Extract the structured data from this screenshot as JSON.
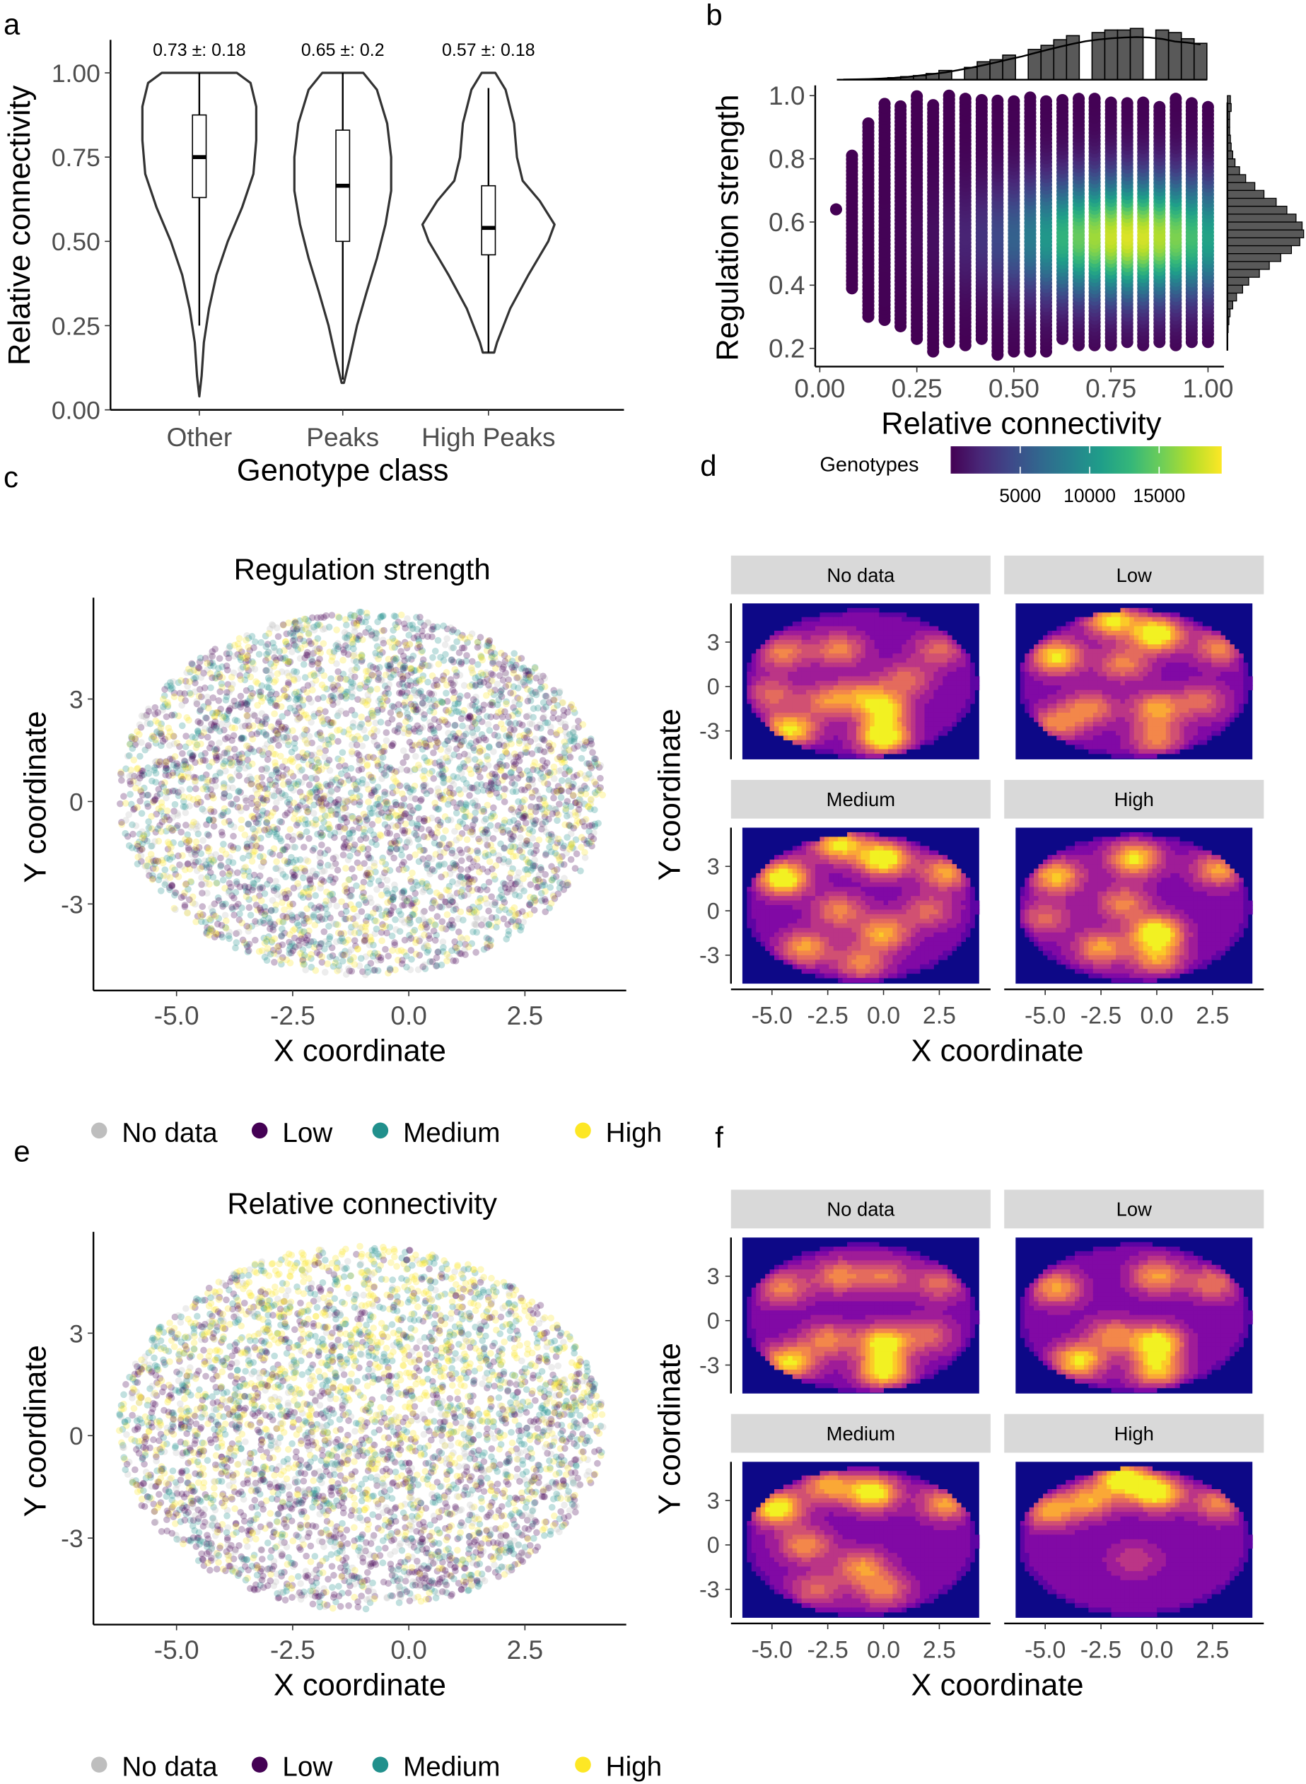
{
  "panel_labels": {
    "a": "a",
    "b": "b",
    "c": "c",
    "d": "d",
    "e": "e",
    "f": "f"
  },
  "chart_data": [
    {
      "panel": "a",
      "type": "violin",
      "xlabel": "Genotype class",
      "ylabel": "Relative connectivity",
      "ylim": [
        0,
        1.1
      ],
      "yticks": [
        "0.00",
        "0.25",
        "0.50",
        "0.75",
        "1.00"
      ],
      "categories": [
        "Other",
        "Peaks",
        "High Peaks"
      ],
      "annotations": [
        "0.73 ±: 0.18",
        "0.65 ±: 0.2",
        "0.57 ±: 0.18"
      ],
      "series": [
        {
          "category": "Other",
          "box": {
            "whisker_low": 0.25,
            "q1": 0.63,
            "median": 0.75,
            "q3": 0.875,
            "whisker_high": 1.0
          },
          "violin_profile": [
            [
              1.0,
              0.66
            ],
            [
              0.97,
              0.9
            ],
            [
              0.9,
              1.0
            ],
            [
              0.8,
              1.0
            ],
            [
              0.7,
              0.95
            ],
            [
              0.6,
              0.75
            ],
            [
              0.5,
              0.5
            ],
            [
              0.4,
              0.3
            ],
            [
              0.3,
              0.17
            ],
            [
              0.2,
              0.08
            ],
            [
              0.1,
              0.04
            ],
            [
              0.04,
              0.0
            ]
          ]
        },
        {
          "category": "Peaks",
          "box": {
            "whisker_low": 0.09,
            "q1": 0.5,
            "median": 0.665,
            "q3": 0.83,
            "whisker_high": 1.0
          },
          "violin_profile": [
            [
              1.0,
              0.36
            ],
            [
              0.95,
              0.6
            ],
            [
              0.85,
              0.78
            ],
            [
              0.75,
              0.85
            ],
            [
              0.65,
              0.85
            ],
            [
              0.55,
              0.75
            ],
            [
              0.45,
              0.6
            ],
            [
              0.35,
              0.42
            ],
            [
              0.25,
              0.25
            ],
            [
              0.15,
              0.12
            ],
            [
              0.08,
              0.02
            ]
          ]
        },
        {
          "category": "High Peaks",
          "box": {
            "whisker_low": 0.17,
            "q1": 0.46,
            "median": 0.54,
            "q3": 0.665,
            "whisker_high": 0.955
          },
          "violin_profile": [
            [
              1.0,
              0.12
            ],
            [
              0.95,
              0.3
            ],
            [
              0.85,
              0.45
            ],
            [
              0.75,
              0.5
            ],
            [
              0.68,
              0.6
            ],
            [
              0.62,
              0.9
            ],
            [
              0.55,
              1.16
            ],
            [
              0.5,
              1.05
            ],
            [
              0.4,
              0.7
            ],
            [
              0.3,
              0.38
            ],
            [
              0.2,
              0.15
            ],
            [
              0.17,
              0.1
            ]
          ]
        }
      ]
    },
    {
      "panel": "b",
      "type": "scatter",
      "xlabel": "Relative connectivity",
      "ylabel": "Regulation strength",
      "xlim": [
        0,
        1
      ],
      "ylim": [
        0.18,
        1.02
      ],
      "xticks": [
        "0.00",
        "0.25",
        "0.50",
        "0.75",
        "1.00"
      ],
      "yticks": [
        "0.2",
        "0.4",
        "0.6",
        "0.8",
        "1.0"
      ],
      "columns": [
        {
          "x": 0.042,
          "ymin": 0.64,
          "ymax": 0.64
        },
        {
          "x": 0.083,
          "ymin": 0.39,
          "ymax": 0.81
        },
        {
          "x": 0.125,
          "ymin": 0.3,
          "ymax": 0.92
        },
        {
          "x": 0.167,
          "ymin": 0.29,
          "ymax": 0.98
        },
        {
          "x": 0.208,
          "ymin": 0.27,
          "ymax": 0.97
        },
        {
          "x": 0.25,
          "ymin": 0.23,
          "ymax": 1.0
        },
        {
          "x": 0.292,
          "ymin": 0.19,
          "ymax": 0.98
        },
        {
          "x": 0.333,
          "ymin": 0.22,
          "ymax": 1.0
        },
        {
          "x": 0.375,
          "ymin": 0.21,
          "ymax": 0.99
        },
        {
          "x": 0.417,
          "ymin": 0.23,
          "ymax": 0.99
        },
        {
          "x": 0.458,
          "ymin": 0.18,
          "ymax": 0.99
        },
        {
          "x": 0.5,
          "ymin": 0.19,
          "ymax": 0.99
        },
        {
          "x": 0.542,
          "ymin": 0.19,
          "ymax": 1.0
        },
        {
          "x": 0.583,
          "ymin": 0.19,
          "ymax": 0.99
        },
        {
          "x": 0.625,
          "ymin": 0.23,
          "ymax": 0.99
        },
        {
          "x": 0.667,
          "ymin": 0.21,
          "ymax": 0.99
        },
        {
          "x": 0.708,
          "ymin": 0.21,
          "ymax": 0.99
        },
        {
          "x": 0.75,
          "ymin": 0.21,
          "ymax": 0.98
        },
        {
          "x": 0.792,
          "ymin": 0.22,
          "ymax": 0.98
        },
        {
          "x": 0.833,
          "ymin": 0.21,
          "ymax": 0.98
        },
        {
          "x": 0.875,
          "ymin": 0.22,
          "ymax": 0.97
        },
        {
          "x": 0.917,
          "ymin": 0.21,
          "ymax": 0.99
        },
        {
          "x": 0.958,
          "ymin": 0.22,
          "ymax": 0.98
        },
        {
          "x": 1.0,
          "ymin": 0.22,
          "ymax": 0.97
        }
      ],
      "density_peak": {
        "x": 0.8,
        "y": 0.56,
        "genotypes": 18500
      },
      "colorbar": {
        "title": "Genotypes",
        "ticks": [
          5000,
          10000,
          15000
        ],
        "tick_labels": [
          "5000",
          "10000",
          "15000"
        ],
        "range": [
          0,
          19500
        ],
        "palette": [
          "#440154",
          "#482878",
          "#3e4989",
          "#31688e",
          "#26828e",
          "#1f9e89",
          "#35b779",
          "#6ece58",
          "#b5de2b",
          "#fde725"
        ]
      },
      "top_histogram_relative": [
        0,
        0,
        0.01,
        0.02,
        0.04,
        0.06,
        0.08,
        0.12,
        0.18,
        0,
        0.24,
        0.35,
        0.39,
        0.48,
        0,
        0.59,
        0.67,
        0.78,
        0.86,
        0,
        0.92,
        0.97,
        0.97,
        1.0,
        0,
        0.97,
        0.92,
        0.8,
        0.71
      ],
      "right_histogram_relative": [
        0.002,
        0.004,
        0.01,
        0.02,
        0.035,
        0.07,
        0.12,
        0.2,
        0.28,
        0.42,
        0.55,
        0.7,
        0.84,
        0.95,
        1.0,
        0.98,
        0.9,
        0.78,
        0.64,
        0.48,
        0.36,
        0.24,
        0.16,
        0.1,
        0.07,
        0.05,
        0.04,
        0.03,
        0.03,
        0.03,
        0.05,
        0.04
      ]
    },
    {
      "panel": "c",
      "type": "scatter",
      "title": "Regulation strength",
      "xlabel": "X coordinate",
      "ylabel": "Y coordinate",
      "xticks": [
        "-5.0",
        "-2.5",
        "0.0",
        "2.5"
      ],
      "yticks": [
        "-3",
        "0",
        "3"
      ],
      "point_cloud": {
        "x_range": [
          -6.26,
          4.2
        ],
        "y_range": [
          -5.1,
          5.56
        ]
      },
      "category_weights_top": [
        0.15,
        0.35,
        0.3,
        0.2
      ],
      "category_weights_bottom": [
        0.15,
        0.3,
        0.3,
        0.25
      ],
      "legend": [
        {
          "label": "No data",
          "color": "#bebebe"
        },
        {
          "label": "Low",
          "color": "#440154"
        },
        {
          "label": "Medium",
          "color": "#21908c"
        },
        {
          "label": "High",
          "color": "#fde725"
        }
      ]
    },
    {
      "panel": "d",
      "type": "heatmap",
      "xlabel": "X coordinate",
      "ylabel": "Y coordinate",
      "xticks": [
        "-5.0",
        "-2.5",
        "0.0",
        "2.5"
      ],
      "yticks": [
        "-3",
        "0",
        "3"
      ],
      "palette": [
        "#0d0887",
        "#5302a3",
        "#8b0aa5",
        "#b83289",
        "#db5c68",
        "#f48849",
        "#febd2a",
        "#f0f921"
      ],
      "facets": [
        {
          "label": "No data",
          "hotspots": [
            [
              -4.2,
              -2.9,
              0.8
            ],
            [
              0,
              -3.4,
              0.95
            ],
            [
              0,
              -1.5,
              0.75
            ],
            [
              -2.5,
              -1.0,
              0.5
            ],
            [
              -4.5,
              2.3,
              0.5
            ],
            [
              -2,
              2.5,
              0.5
            ],
            [
              1,
              0.5,
              0.4
            ],
            [
              2.5,
              2.5,
              0.4
            ],
            [
              -5,
              -0.5,
              0.4
            ],
            [
              -1,
              -0.5,
              0.4
            ]
          ]
        },
        {
          "label": "Low",
          "hotspots": [
            [
              -2,
              4.5,
              0.8
            ],
            [
              0,
              3.5,
              0.95
            ],
            [
              -4.5,
              2,
              0.8
            ],
            [
              -1.5,
              1.5,
              0.5
            ],
            [
              2.8,
              2.6,
              0.5
            ],
            [
              -3,
              -1.5,
              0.5
            ],
            [
              0,
              -1.5,
              0.6
            ],
            [
              -4.5,
              -2.5,
              0.5
            ],
            [
              0,
              -3.5,
              0.5
            ],
            [
              2,
              -1,
              0.4
            ]
          ]
        },
        {
          "label": "Medium",
          "hotspots": [
            [
              -4.5,
              2.2,
              0.95
            ],
            [
              -2,
              4.5,
              0.8
            ],
            [
              0,
              3.5,
              0.95
            ],
            [
              2.8,
              2.6,
              0.6
            ],
            [
              0,
              -1.5,
              0.65
            ],
            [
              -3.5,
              -2.5,
              0.6
            ],
            [
              -1,
              -3.5,
              0.5
            ],
            [
              -2,
              0,
              0.5
            ],
            [
              2,
              0,
              0.4
            ]
          ]
        },
        {
          "label": "High",
          "hotspots": [
            [
              0,
              -1.5,
              0.95
            ],
            [
              -1,
              3.5,
              0.8
            ],
            [
              -4.5,
              2.3,
              0.7
            ],
            [
              -2.5,
              -2.5,
              0.6
            ],
            [
              0,
              -3.2,
              0.55
            ],
            [
              2.8,
              2.8,
              0.6
            ],
            [
              -1.5,
              0.5,
              0.5
            ],
            [
              -5,
              -0.5,
              0.4
            ]
          ]
        }
      ]
    },
    {
      "panel": "e",
      "type": "scatter",
      "title": "Relative connectivity",
      "xlabel": "X coordinate",
      "ylabel": "Y coordinate",
      "xticks": [
        "-5.0",
        "-2.5",
        "0.0",
        "2.5"
      ],
      "yticks": [
        "-3",
        "0",
        "3"
      ],
      "point_cloud": {
        "x_range": [
          -6.26,
          4.2
        ],
        "y_range": [
          -5.1,
          5.56
        ]
      },
      "category_weights_top": [
        0.05,
        0.1,
        0.3,
        0.55
      ],
      "category_weights_bottom": [
        0.2,
        0.45,
        0.25,
        0.1
      ],
      "legend": [
        {
          "label": "No data",
          "color": "#bebebe"
        },
        {
          "label": "Low",
          "color": "#440154"
        },
        {
          "label": "Medium",
          "color": "#21908c"
        },
        {
          "label": "High",
          "color": "#fde725"
        }
      ]
    },
    {
      "panel": "f",
      "type": "heatmap",
      "xlabel": "X coordinate",
      "ylabel": "Y coordinate",
      "xticks": [
        "-5.0",
        "-2.5",
        "0.0",
        "2.5"
      ],
      "yticks": [
        "-3",
        "0",
        "3"
      ],
      "palette": [
        "#0d0887",
        "#5302a3",
        "#8b0aa5",
        "#b83289",
        "#db5c68",
        "#f48849",
        "#febd2a",
        "#f0f921"
      ],
      "facets": [
        {
          "label": "No data",
          "hotspots": [
            [
              -4.2,
              -2.8,
              0.8
            ],
            [
              0,
              -3.4,
              0.85
            ],
            [
              0,
              -1.5,
              0.85
            ],
            [
              -2.5,
              -1.3,
              0.5
            ],
            [
              -4.5,
              2.2,
              0.5
            ],
            [
              -2,
              3,
              0.5
            ],
            [
              0,
              3,
              0.45
            ],
            [
              2.5,
              2.5,
              0.4
            ],
            [
              2,
              -1,
              0.4
            ]
          ]
        },
        {
          "label": "Low",
          "hotspots": [
            [
              0,
              -1.5,
              0.9
            ],
            [
              -3.5,
              -2.7,
              0.8
            ],
            [
              0,
              -3.3,
              0.7
            ],
            [
              -4.5,
              2.2,
              0.6
            ],
            [
              0,
              3,
              0.6
            ],
            [
              -2,
              -1,
              0.5
            ],
            [
              2.5,
              2.5,
              0.45
            ]
          ]
        },
        {
          "label": "Medium",
          "hotspots": [
            [
              -4.8,
              2.5,
              0.9
            ],
            [
              -0.5,
              3.5,
              0.9
            ],
            [
              -2.5,
              4,
              0.6
            ],
            [
              2.8,
              2.8,
              0.6
            ],
            [
              -3.5,
              0,
              0.55
            ],
            [
              -1,
              -1.5,
              0.55
            ],
            [
              0,
              -3,
              0.5
            ],
            [
              -3,
              -3,
              0.4
            ]
          ]
        },
        {
          "label": "High",
          "hotspots": [
            [
              -1.5,
              4.5,
              0.95
            ],
            [
              0,
              3.5,
              0.9
            ],
            [
              -4.8,
              2.3,
              0.6
            ],
            [
              -3,
              3,
              0.6
            ],
            [
              2.8,
              2.8,
              0.5
            ],
            [
              -1,
              -1,
              0.25
            ]
          ]
        }
      ]
    }
  ]
}
